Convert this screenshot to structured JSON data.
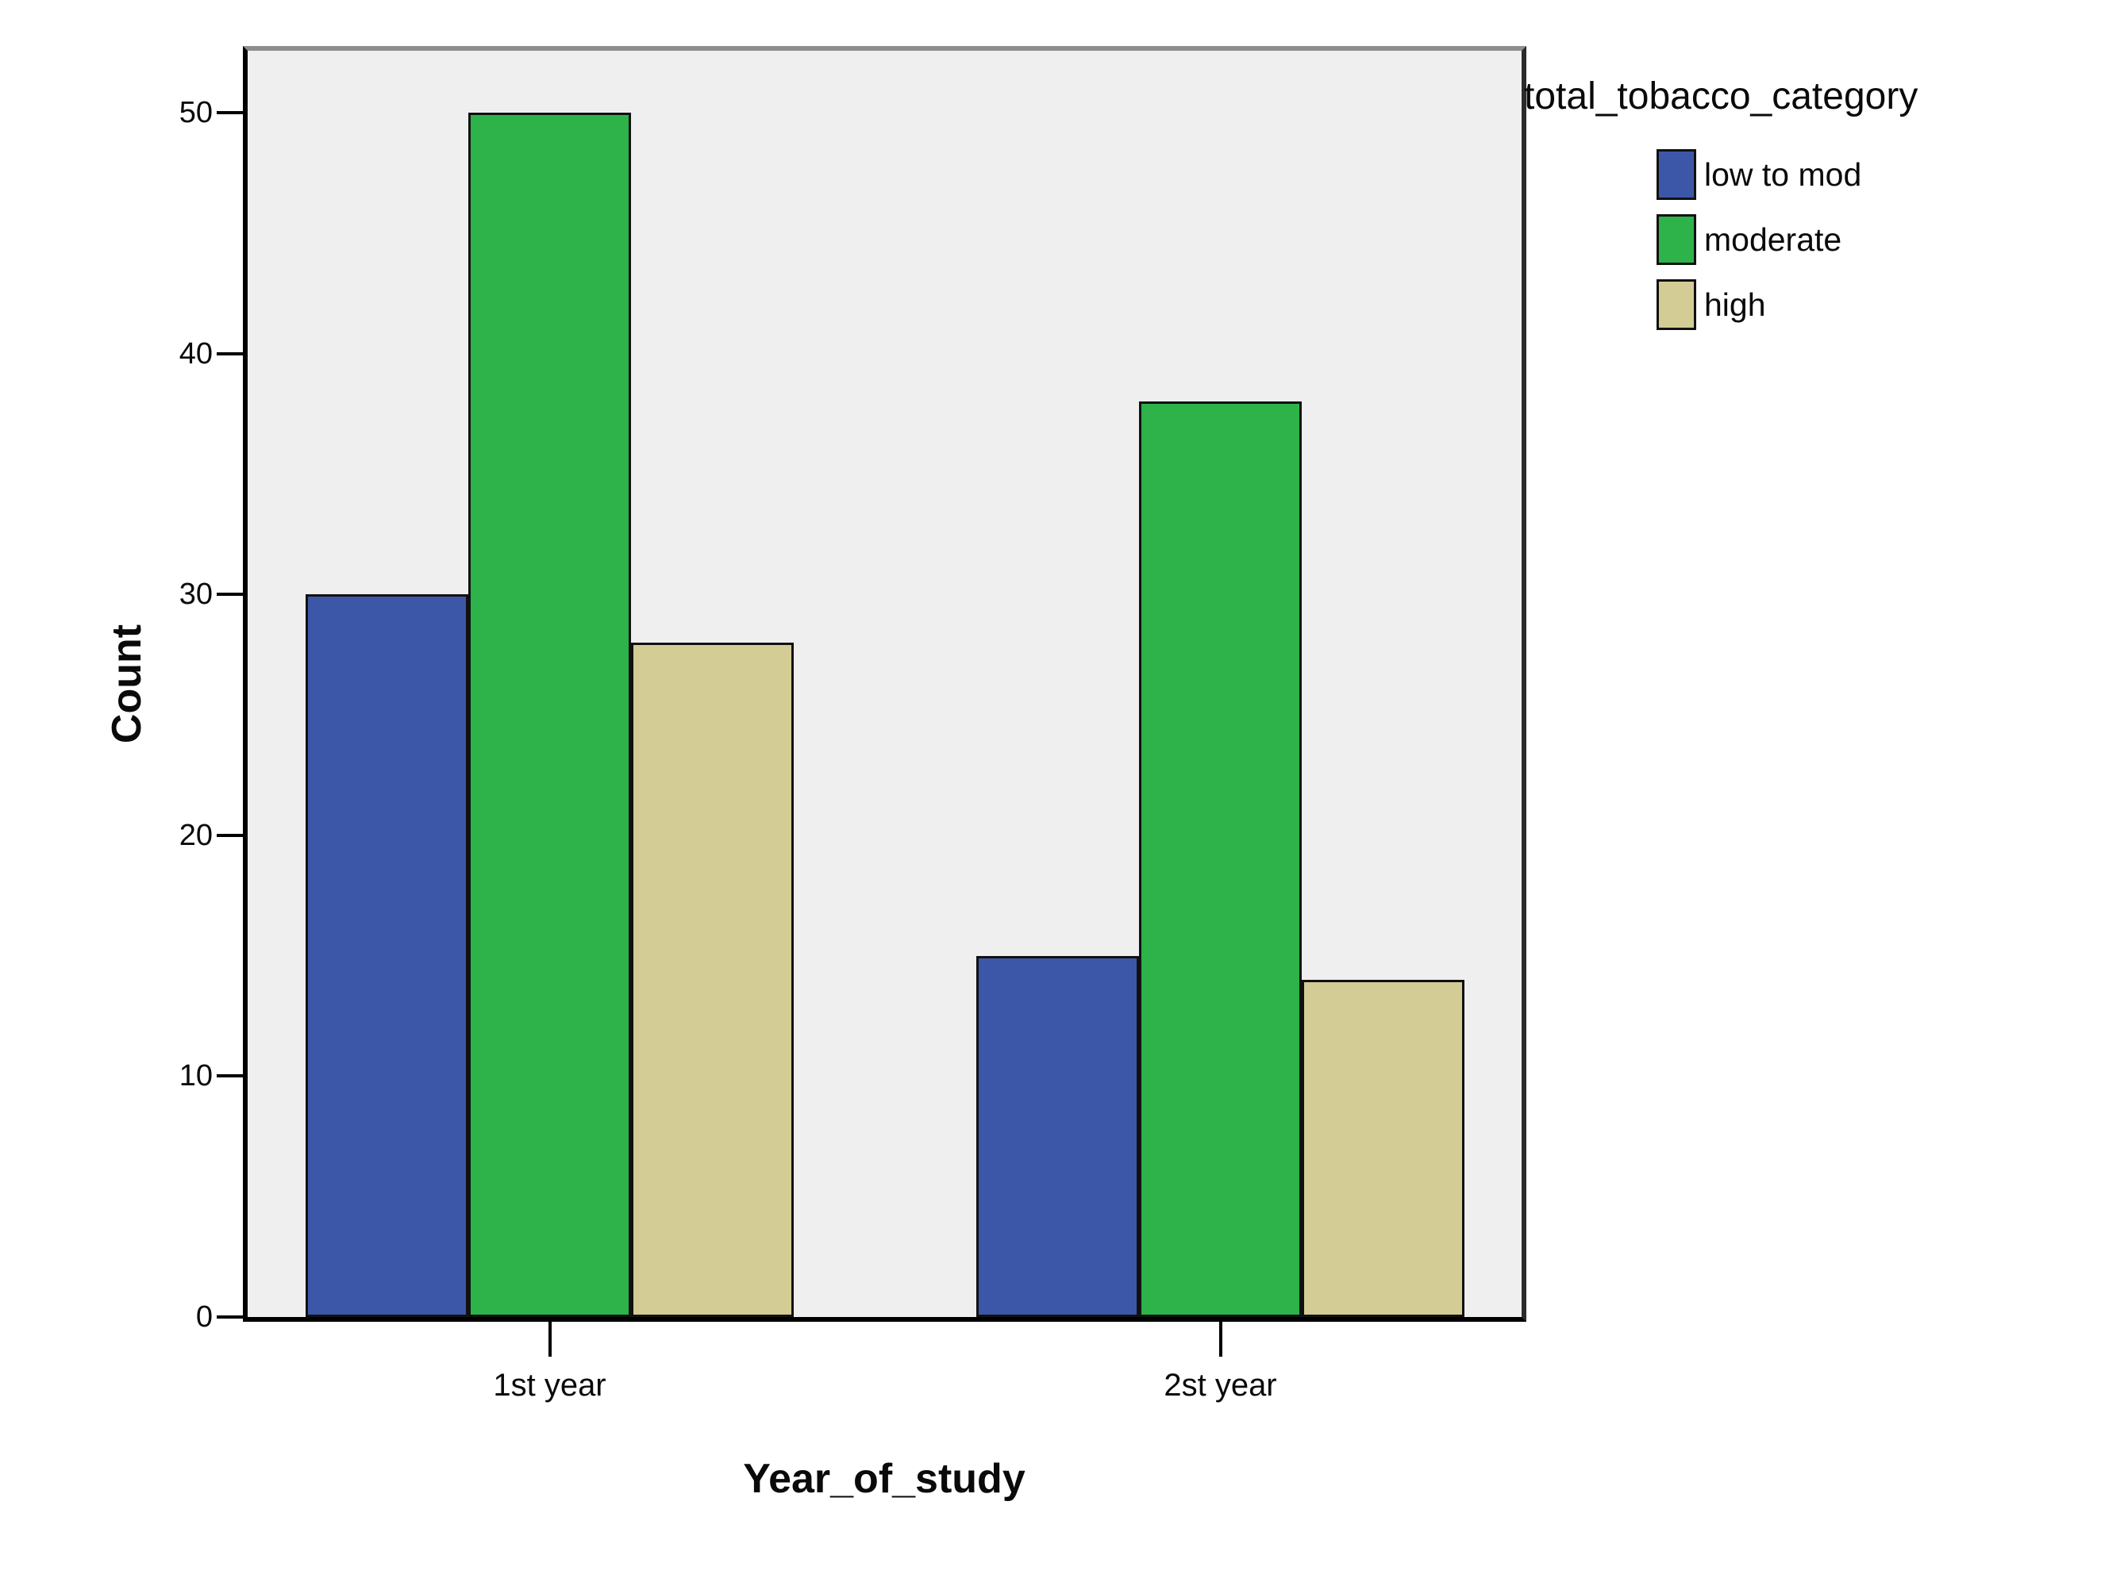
{
  "chart_data": {
    "type": "bar",
    "title": "",
    "legend_title": "total_tobacco_category",
    "xlabel": "Year_of_study",
    "ylabel": "Count",
    "categories": [
      "1st year",
      "2st year"
    ],
    "series": [
      {
        "name": "low to mod",
        "color": "#3D57A8",
        "values": [
          30,
          15
        ]
      },
      {
        "name": "moderate",
        "color": "#2DB34A",
        "values": [
          50,
          38
        ]
      },
      {
        "name": "high",
        "color": "#D3CC95",
        "values": [
          28,
          14
        ]
      }
    ],
    "yticks": [
      0,
      10,
      20,
      30,
      40,
      50
    ],
    "ylim": [
      0,
      52.6
    ],
    "grid": false,
    "legend_position": "top-right",
    "plot_bg": "#EFEFEF",
    "frame_color": "#000000",
    "bar_border_color": "#111111"
  }
}
